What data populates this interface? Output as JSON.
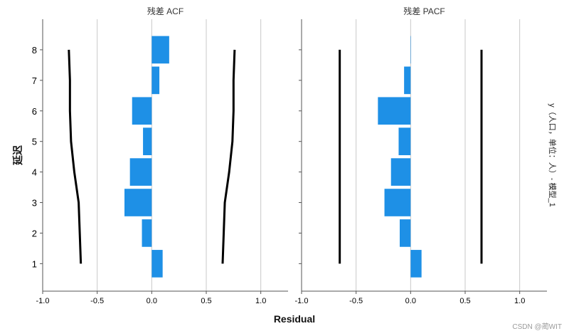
{
  "chart_data": {
    "type": "bar",
    "orientation": "horizontal",
    "panels": [
      {
        "title": "残差 ACF",
        "lags": [
          1,
          2,
          3,
          4,
          5,
          6,
          7,
          8
        ],
        "values": [
          0.1,
          -0.09,
          -0.25,
          -0.2,
          -0.08,
          -0.18,
          0.07,
          0.16
        ],
        "confidence_upper": [
          0.65,
          0.66,
          0.67,
          0.71,
          0.74,
          0.75,
          0.75,
          0.76
        ],
        "confidence_lower": [
          -0.65,
          -0.66,
          -0.67,
          -0.71,
          -0.74,
          -0.75,
          -0.75,
          -0.76
        ]
      },
      {
        "title": "残差 PACF",
        "lags": [
          1,
          2,
          3,
          4,
          5,
          6,
          7,
          8
        ],
        "values": [
          0.1,
          -0.1,
          -0.24,
          -0.18,
          -0.11,
          -0.3,
          -0.06,
          0.0
        ],
        "confidence_upper": [
          0.65,
          0.65,
          0.65,
          0.65,
          0.65,
          0.65,
          0.65,
          0.65
        ],
        "confidence_lower": [
          -0.65,
          -0.65,
          -0.65,
          -0.65,
          -0.65,
          -0.65,
          -0.65,
          -0.65
        ]
      }
    ],
    "xlabel": "Residual",
    "ylabel": "延迟",
    "side_label": "y（人口，单位：人）- 模型_1",
    "xlim": [
      -1.0,
      1.25
    ],
    "ylim": [
      0.1,
      9.0
    ],
    "xticks": [
      -1.0,
      -0.5,
      0.0,
      0.5,
      1.0
    ],
    "xtick_labels": [
      "-1.0",
      "-0.5",
      "0.0",
      "0.5",
      "1.0"
    ],
    "yticks": [
      1,
      2,
      3,
      4,
      5,
      6,
      7,
      8
    ],
    "grid": "vertical",
    "legend": "none",
    "bar_color": "#1e90e6",
    "band_color": "#000000",
    "grid_color": "#c8c8c8"
  },
  "watermark": "CSDN @蔺WIT"
}
